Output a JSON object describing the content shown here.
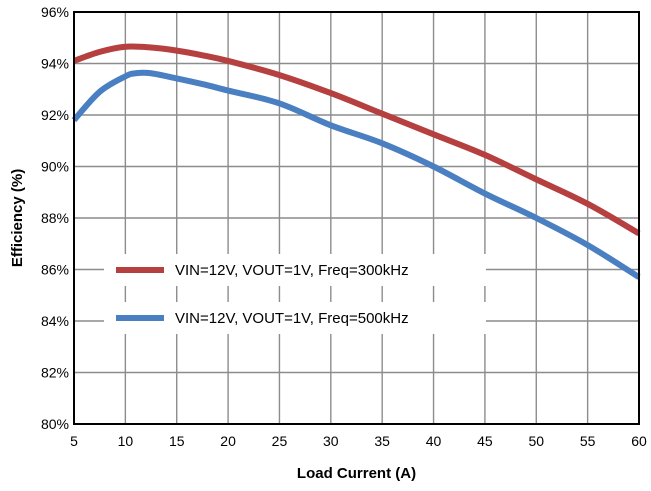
{
  "chart_data": {
    "type": "line",
    "title": "",
    "xlabel": "Load Current (A)",
    "ylabel": "Efficiency (%)",
    "xlim": [
      5,
      60
    ],
    "ylim": [
      80,
      96
    ],
    "x_ticks": [
      5,
      10,
      15,
      20,
      25,
      30,
      35,
      40,
      45,
      50,
      55,
      60
    ],
    "x_tick_labels": [
      "5",
      "10",
      "15",
      "20",
      "25",
      "30",
      "35",
      "40",
      "45",
      "50",
      "55",
      "60"
    ],
    "y_ticks": [
      80,
      82,
      84,
      86,
      88,
      90,
      92,
      94,
      96
    ],
    "y_tick_labels": [
      "80%",
      "82%",
      "84%",
      "86%",
      "88%",
      "90%",
      "92%",
      "94%",
      "96%"
    ],
    "grid": true,
    "legend_position": "center-left",
    "series": [
      {
        "name": "VIN=12V, VOUT=1V, Freq=300kHz",
        "color": "#b5403f",
        "x": [
          5,
          7.5,
          10,
          12.5,
          15,
          17.5,
          20,
          25,
          30,
          35,
          40,
          45,
          50,
          55,
          60
        ],
        "y": [
          94.1,
          94.45,
          94.65,
          94.62,
          94.5,
          94.32,
          94.1,
          93.55,
          92.85,
          92.05,
          91.25,
          90.45,
          89.5,
          88.55,
          87.4
        ]
      },
      {
        "name": "VIN=12V, VOUT=1V, Freq=500kHz",
        "color": "#4a7fc2",
        "x": [
          5,
          7.5,
          10,
          11,
          12.5,
          15,
          17.5,
          20,
          25,
          30,
          35,
          40,
          45,
          50,
          55,
          60
        ],
        "y": [
          91.8,
          92.9,
          93.5,
          93.62,
          93.62,
          93.42,
          93.2,
          92.95,
          92.45,
          91.6,
          90.9,
          90.0,
          88.95,
          88.0,
          86.95,
          85.7
        ]
      }
    ]
  }
}
